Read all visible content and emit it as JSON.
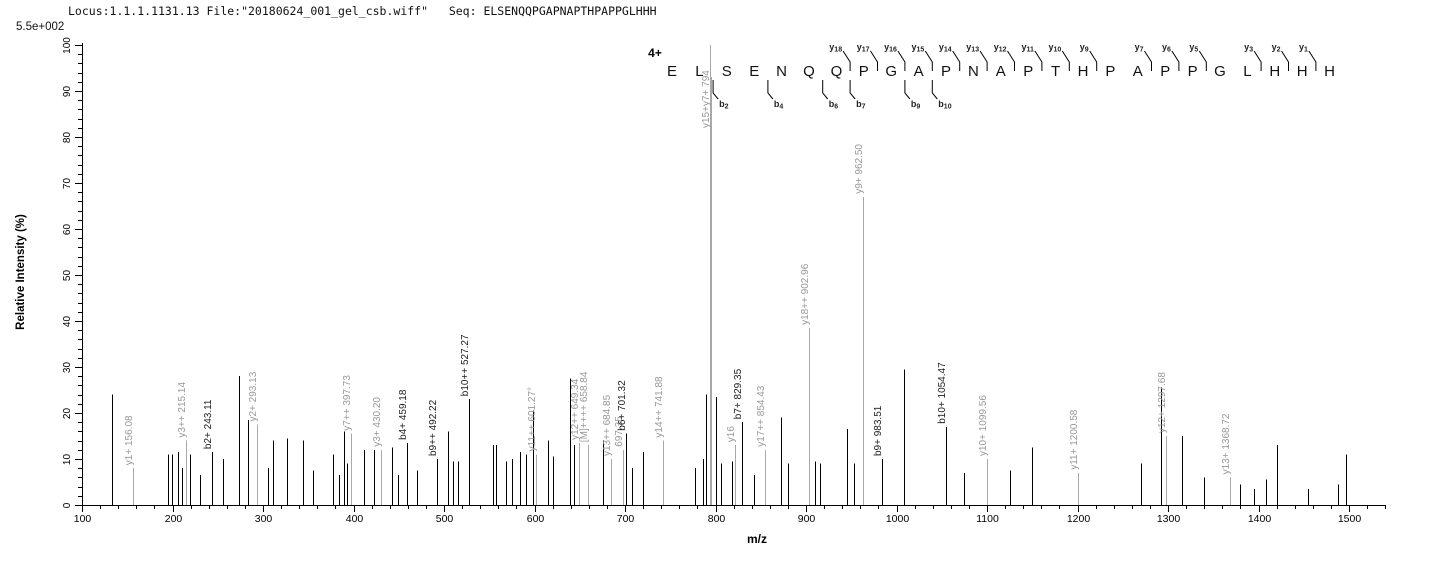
{
  "header": {
    "locus_file": "Locus:1.1.1.1131.13 File:\"20180624_001_gel_csb.wiff\"",
    "seq_label": "Seq:",
    "sequence_text": "ELSENQQPGAPNAPTHPAPPGLHHH",
    "max_intensity": "5.5e+002"
  },
  "sequence_panel": {
    "charge": "4+",
    "residues": "ELSENQQPGAPNAPTHPAPPGLHHH",
    "y_ions": [
      {
        "ion": "y",
        "num": "18",
        "gap": 7
      },
      {
        "ion": "y",
        "num": "17",
        "gap": 8
      },
      {
        "ion": "y",
        "num": "16",
        "gap": 9
      },
      {
        "ion": "y",
        "num": "15",
        "gap": 10
      },
      {
        "ion": "y",
        "num": "14",
        "gap": 11
      },
      {
        "ion": "y",
        "num": "13",
        "gap": 12
      },
      {
        "ion": "y",
        "num": "12",
        "gap": 13
      },
      {
        "ion": "y",
        "num": "11",
        "gap": 14
      },
      {
        "ion": "y",
        "num": "10",
        "gap": 15
      },
      {
        "ion": "y",
        "num": "9",
        "gap": 16
      },
      {
        "ion": "y",
        "num": "7",
        "gap": 18
      },
      {
        "ion": "y",
        "num": "6",
        "gap": 19
      },
      {
        "ion": "y",
        "num": "5",
        "gap": 20
      },
      {
        "ion": "y",
        "num": "3",
        "gap": 22
      },
      {
        "ion": "y",
        "num": "2",
        "gap": 23
      },
      {
        "ion": "y",
        "num": "1",
        "gap": 24
      }
    ],
    "b_ions": [
      {
        "ion": "b",
        "num": "2",
        "gap": 2
      },
      {
        "ion": "b",
        "num": "4",
        "gap": 4
      },
      {
        "ion": "b",
        "num": "6",
        "gap": 6
      },
      {
        "ion": "b",
        "num": "7",
        "gap": 7
      },
      {
        "ion": "b",
        "num": "9",
        "gap": 9
      },
      {
        "ion": "b",
        "num": "10",
        "gap": 10
      }
    ]
  },
  "colors": {
    "peak_black": "#000000",
    "peak_gray": "#a8a8a8",
    "label_black": "#1c1c1c",
    "label_gray": "#989898",
    "axis": "#000000"
  },
  "chart_data": {
    "type": "bar",
    "subtype": "ms2-centroid-mass-spectrum",
    "xlabel": "m/z",
    "ylabel": "Relative  Intensity (%)",
    "xlim": [
      100,
      1540
    ],
    "ylim": [
      0,
      100
    ],
    "x_major_tick": 100,
    "x_minor_tick": 20,
    "y_major_tick": 10,
    "y_minor_tick": 2,
    "grid": false,
    "legend": false,
    "peaks": [
      {
        "mz": 133,
        "i": 24,
        "c": "k"
      },
      {
        "mz": 156.08,
        "i": 8,
        "c": "g",
        "l": "y1+ 156.08"
      },
      {
        "mz": 195,
        "i": 11,
        "c": "k"
      },
      {
        "mz": 199,
        "i": 11,
        "c": "k"
      },
      {
        "mz": 206,
        "i": 11.5,
        "c": "k"
      },
      {
        "mz": 210,
        "i": 8,
        "c": "k"
      },
      {
        "mz": 215.14,
        "i": 14,
        "c": "g",
        "l": "y3++ 215.14"
      },
      {
        "mz": 219,
        "i": 11,
        "c": "k"
      },
      {
        "mz": 230,
        "i": 6.5,
        "c": "k"
      },
      {
        "mz": 243.11,
        "i": 11.5,
        "c": "k",
        "l": "b2+ 243.11"
      },
      {
        "mz": 256,
        "i": 10,
        "c": "k"
      },
      {
        "mz": 274,
        "i": 28,
        "c": "k"
      },
      {
        "mz": 283,
        "i": 18.5,
        "c": "k"
      },
      {
        "mz": 293.13,
        "i": 17.5,
        "c": "g",
        "l": "y2+ 293.13"
      },
      {
        "mz": 305,
        "i": 8,
        "c": "k"
      },
      {
        "mz": 311,
        "i": 14,
        "c": "k"
      },
      {
        "mz": 327,
        "i": 14.5,
        "c": "k"
      },
      {
        "mz": 344,
        "i": 14,
        "c": "k"
      },
      {
        "mz": 355,
        "i": 7.5,
        "c": "k"
      },
      {
        "mz": 377,
        "i": 11,
        "c": "k"
      },
      {
        "mz": 384,
        "i": 6.5,
        "c": "k"
      },
      {
        "mz": 389,
        "i": 16,
        "c": "k"
      },
      {
        "mz": 393,
        "i": 9,
        "c": "k"
      },
      {
        "mz": 397.73,
        "i": 15.5,
        "c": "g",
        "l": "y7++ 397.73"
      },
      {
        "mz": 412,
        "i": 12,
        "c": "k"
      },
      {
        "mz": 423,
        "i": 12,
        "c": "k"
      },
      {
        "mz": 430.2,
        "i": 12,
        "c": "g",
        "l": "y3+ 430.20"
      },
      {
        "mz": 442,
        "i": 12.5,
        "c": "k"
      },
      {
        "mz": 449,
        "i": 6.5,
        "c": "k"
      },
      {
        "mz": 459.18,
        "i": 13.5,
        "c": "k",
        "l": "b4+ 459.18"
      },
      {
        "mz": 470,
        "i": 7.5,
        "c": "k"
      },
      {
        "mz": 492.22,
        "i": 10,
        "c": "k",
        "l": "b9++ 492.22"
      },
      {
        "mz": 504,
        "i": 16,
        "c": "k"
      },
      {
        "mz": 510,
        "i": 9.5,
        "c": "k"
      },
      {
        "mz": 515,
        "i": 9.5,
        "c": "k"
      },
      {
        "mz": 527.27,
        "i": 23,
        "c": "k",
        "l": "b10++ 527.27"
      },
      {
        "mz": 554,
        "i": 13,
        "c": "k"
      },
      {
        "mz": 558,
        "i": 13,
        "c": "k"
      },
      {
        "mz": 569,
        "i": 9.5,
        "c": "k"
      },
      {
        "mz": 575,
        "i": 10,
        "c": "k"
      },
      {
        "mz": 584,
        "i": 11.5,
        "c": "k"
      },
      {
        "mz": 591,
        "i": 11,
        "c": "k"
      },
      {
        "mz": 598,
        "i": 20.5,
        "c": "k"
      },
      {
        "mz": 601.27,
        "i": 11,
        "c": "g",
        "l": "y11++ 601.27°"
      },
      {
        "mz": 615,
        "i": 14,
        "c": "k"
      },
      {
        "mz": 620,
        "i": 10.5,
        "c": "k"
      },
      {
        "mz": 639,
        "i": 27.5,
        "c": "k"
      },
      {
        "mz": 644,
        "i": 13,
        "c": "k"
      },
      {
        "mz": 649.34,
        "i": 13.5,
        "c": "g",
        "l": "y12++ 649.34"
      },
      {
        "mz": 658.84,
        "i": 13,
        "c": "g",
        "l": "[M]++++ 658.84"
      },
      {
        "mz": 676,
        "i": 14,
        "c": "k"
      },
      {
        "mz": 684.85,
        "i": 10,
        "c": "g",
        "l": "y13++ 684.85"
      },
      {
        "mz": 697.35,
        "i": 12,
        "c": "g",
        "l": "697.35"
      },
      {
        "mz": 701.32,
        "i": 15.5,
        "c": "k",
        "l": "b6+ 701.32"
      },
      {
        "mz": 708,
        "i": 8,
        "c": "k"
      },
      {
        "mz": 720,
        "i": 11.5,
        "c": "k"
      },
      {
        "mz": 741.88,
        "i": 14,
        "c": "g",
        "l": "y14++ 741.88"
      },
      {
        "mz": 777,
        "i": 8,
        "c": "k"
      },
      {
        "mz": 786,
        "i": 10,
        "c": "k"
      },
      {
        "mz": 789,
        "i": 24,
        "c": "k"
      },
      {
        "mz": 793.5,
        "i": 100,
        "c": "g",
        "l": "y15+y7+ 794",
        "ly": 128
      },
      {
        "mz": 795.5,
        "i": 93,
        "c": "g"
      },
      {
        "mz": 801,
        "i": 23.5,
        "c": "k"
      },
      {
        "mz": 806,
        "i": 9,
        "c": "k"
      },
      {
        "mz": 818,
        "i": 9.5,
        "c": "k"
      },
      {
        "mz": 822,
        "i": 13,
        "c": "g",
        "l": "y16"
      },
      {
        "mz": 829.35,
        "i": 18,
        "c": "k",
        "l": "b7+ 829.35"
      },
      {
        "mz": 843,
        "i": 6.5,
        "c": "k"
      },
      {
        "mz": 854.43,
        "i": 12,
        "c": "g",
        "l": "y17++ 854.43"
      },
      {
        "mz": 872,
        "i": 19,
        "c": "k"
      },
      {
        "mz": 880,
        "i": 9,
        "c": "k"
      },
      {
        "mz": 902.96,
        "i": 38.5,
        "c": "g",
        "l": "y18++ 902.96"
      },
      {
        "mz": 910,
        "i": 9.5,
        "c": "k"
      },
      {
        "mz": 916,
        "i": 9,
        "c": "k"
      },
      {
        "mz": 945,
        "i": 16.5,
        "c": "k"
      },
      {
        "mz": 953,
        "i": 9,
        "c": "k"
      },
      {
        "mz": 962.5,
        "i": 67,
        "c": "g",
        "l": "y9+ 962.50"
      },
      {
        "mz": 983.51,
        "i": 10,
        "c": "k",
        "l": "b9+ 983.51"
      },
      {
        "mz": 1008,
        "i": 29.5,
        "c": "k"
      },
      {
        "mz": 1054.47,
        "i": 17,
        "c": "k",
        "l": "b10+ 1054.47"
      },
      {
        "mz": 1075,
        "i": 7,
        "c": "k"
      },
      {
        "mz": 1099.56,
        "i": 10,
        "c": "g",
        "l": "y10+ 1099.56"
      },
      {
        "mz": 1125,
        "i": 7.5,
        "c": "k"
      },
      {
        "mz": 1150,
        "i": 12.5,
        "c": "k"
      },
      {
        "mz": 1200.58,
        "i": 7,
        "c": "g",
        "l": "y11+ 1200.58"
      },
      {
        "mz": 1270,
        "i": 9,
        "c": "k"
      },
      {
        "mz": 1292,
        "i": 25.5,
        "c": "k"
      },
      {
        "mz": 1297.68,
        "i": 15,
        "c": "g",
        "l": "y12+ 1297.68"
      },
      {
        "mz": 1315,
        "i": 15,
        "c": "k"
      },
      {
        "mz": 1340,
        "i": 6,
        "c": "k"
      },
      {
        "mz": 1368.72,
        "i": 6,
        "c": "g",
        "l": "y13+ 1368.72"
      },
      {
        "mz": 1380,
        "i": 4.5,
        "c": "k"
      },
      {
        "mz": 1395,
        "i": 3.5,
        "c": "k"
      },
      {
        "mz": 1408,
        "i": 5.5,
        "c": "k"
      },
      {
        "mz": 1420,
        "i": 13,
        "c": "k"
      },
      {
        "mz": 1455,
        "i": 3.5,
        "c": "k"
      },
      {
        "mz": 1488,
        "i": 4.5,
        "c": "k"
      },
      {
        "mz": 1497,
        "i": 11,
        "c": "k"
      }
    ]
  }
}
